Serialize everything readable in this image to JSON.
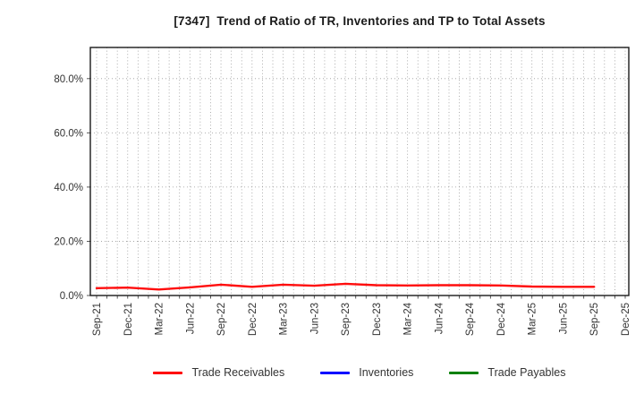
{
  "title": "[7347]  Trend of Ratio of TR, Inventories and TP to Total Assets",
  "colors": {
    "trade_receivables": "#ff0000",
    "inventories": "#0000ff",
    "trade_payables": "#008000",
    "grid": "#9a9a9a",
    "frame": "#1a1a1a",
    "tick_label": "#333333",
    "title_text": "#1a1a1a",
    "background": "#ffffff"
  },
  "y_axis": {
    "ticks": [
      "0.0%",
      "20.0%",
      "40.0%",
      "60.0%",
      "80.0%"
    ],
    "tick_values": [
      0,
      20,
      40,
      60,
      80
    ]
  },
  "x_axis": {
    "ticks": [
      "Sep-21",
      "Dec-21",
      "Mar-22",
      "Jun-22",
      "Sep-22",
      "Dec-22",
      "Mar-23",
      "Jun-23",
      "Sep-23",
      "Dec-23",
      "Mar-24",
      "Jun-24",
      "Sep-24",
      "Dec-24",
      "Mar-25",
      "Jun-25",
      "Sep-25",
      "Dec-25"
    ]
  },
  "legend": [
    {
      "label": "Trade Receivables",
      "color": "#ff0000"
    },
    {
      "label": "Inventories",
      "color": "#0000ff"
    },
    {
      "label": "Trade Payables",
      "color": "#008000"
    }
  ],
  "chart_data": {
    "type": "line",
    "title": "[7347]  Trend of Ratio of TR, Inventories and TP to Total Assets",
    "categories": [
      "Sep-21",
      "Dec-21",
      "Mar-22",
      "Jun-22",
      "Sep-22",
      "Dec-22",
      "Mar-23",
      "Jun-23",
      "Sep-23",
      "Dec-23",
      "Mar-24",
      "Jun-24",
      "Sep-24",
      "Dec-24",
      "Mar-25",
      "Jun-25",
      "Sep-25",
      "Dec-25"
    ],
    "series": [
      {
        "name": "Trade Receivables",
        "color": "#ff0000",
        "values": [
          2.7,
          2.9,
          2.2,
          3.0,
          4.0,
          3.2,
          4.0,
          3.6,
          4.3,
          3.8,
          3.7,
          3.8,
          3.8,
          3.7,
          3.3,
          3.2,
          3.2,
          null
        ]
      },
      {
        "name": "Inventories",
        "color": "#0000ff",
        "values": [
          null,
          null,
          null,
          null,
          null,
          null,
          null,
          null,
          null,
          null,
          null,
          null,
          null,
          null,
          null,
          null,
          null,
          null
        ]
      },
      {
        "name": "Trade Payables",
        "color": "#008000",
        "values": [
          null,
          null,
          null,
          null,
          null,
          null,
          null,
          null,
          null,
          null,
          null,
          null,
          null,
          null,
          null,
          null,
          null,
          null
        ]
      }
    ],
    "xlabel": "",
    "ylabel": "",
    "ylim": [
      0,
      91.5
    ],
    "yticks_percent": [
      0,
      20,
      40,
      60,
      80
    ],
    "grid": true,
    "x_minor_gridlines": "monthly",
    "legend_position": "bottom"
  }
}
